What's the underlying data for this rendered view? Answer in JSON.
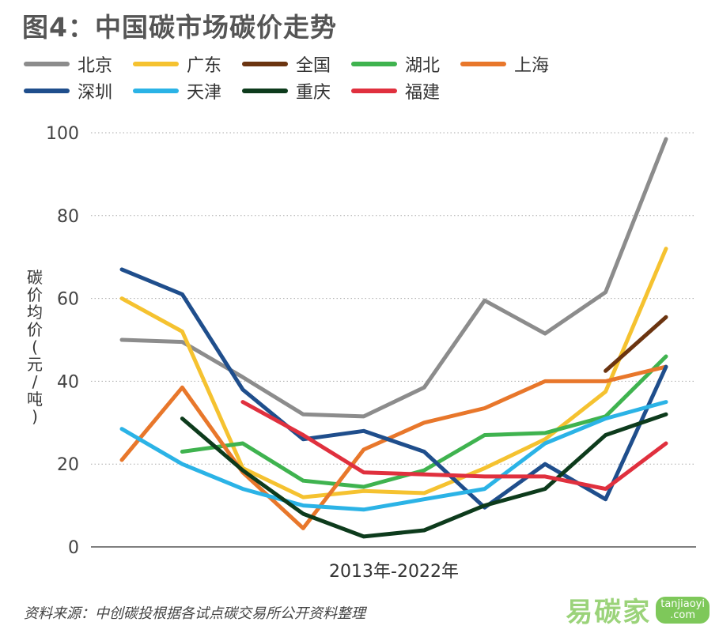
{
  "title": "图4：中国碳市场碳价走势",
  "source_note": "资料来源：中创碳投根据各试点碳交易所公开资料整理",
  "watermark": {
    "text": "易碳家",
    "badge_line1": "tanjiaoyi",
    "badge_line2": ".com"
  },
  "chart_data": {
    "type": "line",
    "xlabel": "2013年-2022年",
    "ylabel": "碳价均价(元/吨)",
    "ylim": [
      0,
      100
    ],
    "yticks": [
      "0",
      "20",
      "40",
      "60",
      "80",
      "100"
    ],
    "grid": true,
    "legend_position": "top",
    "x": [
      2013,
      2014,
      2015,
      2016,
      2017,
      2018,
      2019,
      2020,
      2021,
      2022
    ],
    "series": [
      {
        "name": "北京",
        "color": "#8c8c8c",
        "values": [
          50,
          49.5,
          41,
          32,
          31.5,
          38.5,
          59.5,
          51.5,
          61.5,
          98.5
        ]
      },
      {
        "name": "广东",
        "color": "#f5c230",
        "values": [
          60,
          52,
          19,
          12,
          13.5,
          13,
          19,
          26,
          37.5,
          72
        ]
      },
      {
        "name": "全国",
        "color": "#6b3410",
        "values": [
          null,
          null,
          null,
          null,
          null,
          null,
          null,
          null,
          42.5,
          55.5
        ]
      },
      {
        "name": "湖北",
        "color": "#3fb34f",
        "values": [
          null,
          23,
          25,
          16,
          14.5,
          18.5,
          27,
          27.5,
          31.5,
          46
        ]
      },
      {
        "name": "上海",
        "color": "#e8772b",
        "values": [
          21,
          38.5,
          18,
          4.5,
          23.5,
          30,
          33.5,
          40,
          40,
          43.5
        ]
      },
      {
        "name": "深圳",
        "color": "#1f4e8c",
        "values": [
          67,
          61,
          38,
          26,
          28,
          23,
          9.5,
          20,
          11.5,
          43.5
        ]
      },
      {
        "name": "天津",
        "color": "#2bb3e6",
        "values": [
          28.5,
          20,
          14,
          10,
          9,
          11.5,
          14,
          25,
          31,
          35
        ]
      },
      {
        "name": "重庆",
        "color": "#0d3b1c",
        "values": [
          null,
          31,
          18.5,
          8,
          2.5,
          4,
          10,
          14,
          27,
          32
        ]
      },
      {
        "name": "福建",
        "color": "#e0303e",
        "values": [
          null,
          null,
          35,
          27,
          18,
          17.5,
          17,
          17,
          14,
          25
        ]
      }
    ]
  }
}
